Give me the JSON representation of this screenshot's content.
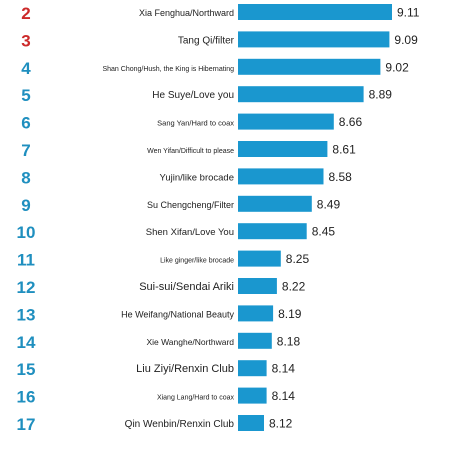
{
  "chart_data": {
    "type": "bar",
    "orientation": "horizontal",
    "ranks": [
      "2",
      "3",
      "4",
      "5",
      "6",
      "7",
      "8",
      "9",
      "10",
      "11",
      "12",
      "13",
      "14",
      "15",
      "16",
      "17"
    ],
    "categories": [
      "Xia Fenghua/Northward",
      "Tang Qi/filter",
      "Shan Chong/Hush, the King is Hibernating",
      "He Suye/Love you",
      "Sang Yan/Hard to coax",
      "Wen Yifan/Difficult to please",
      "Yujin/like brocade",
      "Su Chengcheng/Filter",
      "Shen Xifan/Love You",
      "Like ginger/like brocade",
      "Sui-sui/Sendai Ariki",
      "He Weifang/National Beauty",
      "Xie Wanghe/Northward",
      "Liu Ziyi/Renxin Club",
      "Xiang Lang/Hard to coax",
      "Qin Wenbin/Renxin Club"
    ],
    "value_labels": [
      "9.11",
      "9.09",
      "9.02",
      "8.89",
      "8.66",
      "8.61",
      "8.58",
      "8.49",
      "8.45",
      "8.25",
      "8.22",
      "8.19",
      "8.18",
      "8.14",
      "8.14",
      "8.12"
    ],
    "values": [
      9.11,
      9.09,
      9.02,
      8.89,
      8.66,
      8.61,
      8.58,
      8.49,
      8.45,
      8.25,
      8.22,
      8.19,
      8.18,
      8.14,
      8.14,
      8.12
    ],
    "colors": {
      "bar": "#1a97cf",
      "rank_top": "#cc2a2a",
      "rank": "#1f8fbf",
      "category_text": "#222222",
      "value_text": "#222222"
    },
    "top_rank_count": 2,
    "grid": false,
    "legend": "none"
  }
}
